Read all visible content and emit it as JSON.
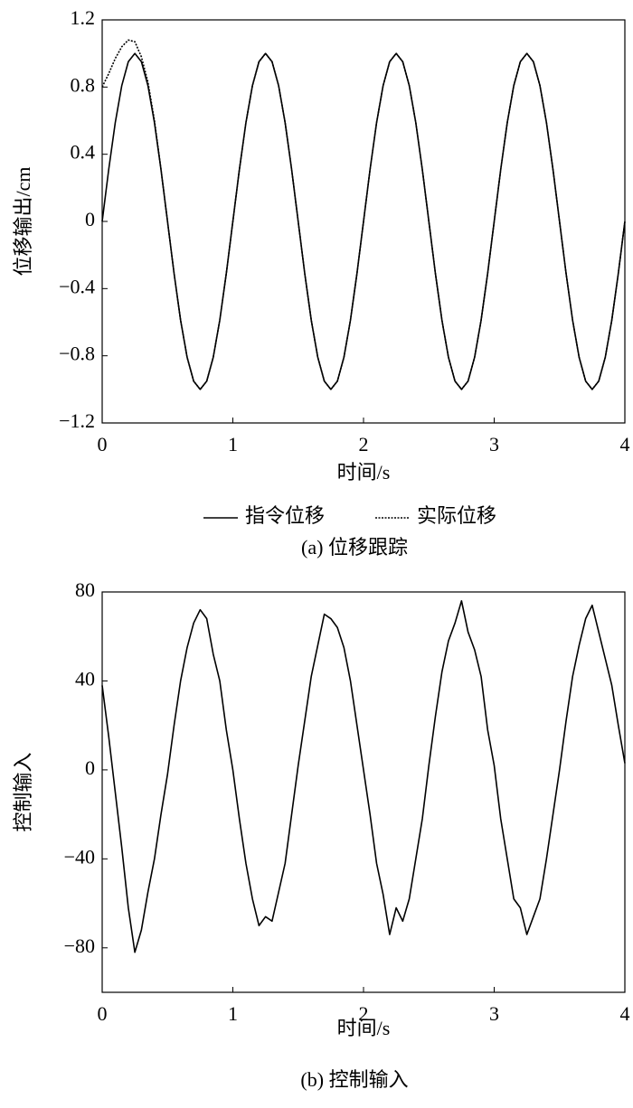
{
  "chart_data": [
    {
      "type": "line",
      "title": "(a) 位移跟踪",
      "xlabel": "时间/s",
      "ylabel": "位移输出/cm",
      "x": [
        0,
        0.05,
        0.1,
        0.15,
        0.2,
        0.25,
        0.3,
        0.35,
        0.4,
        0.45,
        0.5,
        0.55,
        0.6,
        0.65,
        0.7,
        0.75,
        0.8,
        0.85,
        0.9,
        0.95,
        1,
        1.05,
        1.1,
        1.15,
        1.2,
        1.25,
        1.3,
        1.35,
        1.4,
        1.45,
        1.5,
        1.55,
        1.6,
        1.65,
        1.7,
        1.75,
        1.8,
        1.85,
        1.9,
        1.95,
        2,
        2.05,
        2.1,
        2.15,
        2.2,
        2.25,
        2.3,
        2.35,
        2.4,
        2.45,
        2.5,
        2.55,
        2.6,
        2.65,
        2.7,
        2.75,
        2.8,
        2.85,
        2.9,
        2.95,
        3,
        3.05,
        3.1,
        3.15,
        3.2,
        3.25,
        3.3,
        3.35,
        3.4,
        3.45,
        3.5,
        3.55,
        3.6,
        3.65,
        3.7,
        3.75,
        3.8,
        3.85,
        3.9,
        3.95,
        4
      ],
      "series": [
        {
          "name": "指令位移",
          "color": "#000000",
          "linestyle": "solid",
          "values": [
            0,
            0.309,
            0.588,
            0.809,
            0.951,
            1,
            0.951,
            0.809,
            0.588,
            0.309,
            0,
            -0.309,
            -0.588,
            -0.809,
            -0.951,
            -1,
            -0.951,
            -0.809,
            -0.588,
            -0.309,
            0,
            0.309,
            0.588,
            0.809,
            0.951,
            1,
            0.951,
            0.809,
            0.588,
            0.309,
            0,
            -0.309,
            -0.588,
            -0.809,
            -0.951,
            -1,
            -0.951,
            -0.809,
            -0.588,
            -0.309,
            0,
            0.309,
            0.588,
            0.809,
            0.951,
            1,
            0.951,
            0.809,
            0.588,
            0.309,
            0,
            -0.309,
            -0.588,
            -0.809,
            -0.951,
            -1,
            -0.951,
            -0.809,
            -0.588,
            -0.309,
            0,
            0.309,
            0.588,
            0.809,
            0.951,
            1,
            0.951,
            0.809,
            0.588,
            0.309,
            0,
            -0.309,
            -0.588,
            -0.809,
            -0.951,
            -1,
            -0.951,
            -0.809,
            -0.588,
            -0.309,
            0
          ]
        },
        {
          "name": "实际位移",
          "color": "#000000",
          "linestyle": "dotted",
          "values": [
            0.8,
            0.88,
            0.97,
            1.04,
            1.08,
            1.07,
            0.98,
            0.83,
            0.6,
            0.309,
            0,
            -0.309,
            -0.588,
            -0.809,
            -0.951,
            -1,
            -0.951,
            -0.809,
            -0.588,
            -0.309,
            0,
            0.309,
            0.588,
            0.809,
            0.951,
            1,
            0.951,
            0.809,
            0.588,
            0.309,
            0,
            -0.309,
            -0.588,
            -0.809,
            -0.951,
            -1,
            -0.951,
            -0.809,
            -0.588,
            -0.309,
            0,
            0.309,
            0.588,
            0.809,
            0.951,
            1,
            0.951,
            0.809,
            0.588,
            0.309,
            0,
            -0.309,
            -0.588,
            -0.809,
            -0.951,
            -1,
            -0.951,
            -0.809,
            -0.588,
            -0.309,
            0,
            0.309,
            0.588,
            0.809,
            0.951,
            1,
            0.951,
            0.809,
            0.588,
            0.309,
            0,
            -0.309,
            -0.588,
            -0.809,
            -0.951,
            -1,
            -0.951,
            -0.809,
            -0.588,
            -0.309,
            0
          ]
        }
      ],
      "xlim": [
        0,
        4
      ],
      "xticks": [
        0,
        1,
        2,
        3,
        4
      ],
      "ylim": [
        -1.2,
        1.2
      ],
      "yticks": [
        1.2,
        0.8,
        0.4,
        0,
        {
          "value": -0.4,
          "label": "−0.4"
        },
        {
          "value": -0.8,
          "label": "−0.8"
        },
        {
          "value": -1.2,
          "label": "−1.2"
        }
      ],
      "legend": "bottom"
    },
    {
      "type": "line",
      "title": "(b) 控制输入",
      "xlabel": "时间/s",
      "ylabel": "控制输入",
      "x": [
        0,
        0.05,
        0.1,
        0.15,
        0.2,
        0.25,
        0.3,
        0.35,
        0.4,
        0.45,
        0.5,
        0.55,
        0.6,
        0.65,
        0.7,
        0.75,
        0.8,
        0.85,
        0.9,
        0.95,
        1,
        1.05,
        1.1,
        1.15,
        1.2,
        1.25,
        1.3,
        1.35,
        1.4,
        1.45,
        1.5,
        1.55,
        1.6,
        1.65,
        1.7,
        1.75,
        1.8,
        1.85,
        1.9,
        1.95,
        2,
        2.05,
        2.1,
        2.15,
        2.2,
        2.25,
        2.3,
        2.35,
        2.4,
        2.45,
        2.5,
        2.55,
        2.6,
        2.65,
        2.7,
        2.75,
        2.8,
        2.85,
        2.9,
        2.95,
        3,
        3.05,
        3.1,
        3.15,
        3.2,
        3.25,
        3.3,
        3.35,
        3.4,
        3.45,
        3.5,
        3.55,
        3.6,
        3.65,
        3.7,
        3.75,
        3.8,
        3.85,
        3.9,
        3.95,
        4
      ],
      "color": "#000000",
      "values": [
        38,
        15,
        -10,
        -35,
        -62,
        -82,
        -72,
        -55,
        -40,
        -20,
        -2,
        20,
        40,
        55,
        66,
        72,
        68,
        52,
        40,
        18,
        0,
        -22,
        -42,
        -58,
        -70,
        -66,
        -68,
        -55,
        -42,
        -20,
        2,
        22,
        42,
        56,
        70,
        68,
        64,
        55,
        40,
        20,
        0,
        -20,
        -42,
        -56,
        -74,
        -62,
        -68,
        -58,
        -40,
        -22,
        2,
        24,
        44,
        58,
        66,
        76,
        62,
        54,
        42,
        18,
        2,
        -22,
        -40,
        -58,
        -62,
        -74,
        -66,
        -58,
        -40,
        -20,
        0,
        22,
        42,
        56,
        68,
        74,
        62,
        50,
        38,
        20,
        3
      ],
      "xlim": [
        0,
        4
      ],
      "xticks": [
        0,
        1,
        2,
        3,
        4
      ],
      "ylim": [
        -100,
        80
      ],
      "yticks": [
        80,
        40,
        0,
        {
          "value": -40,
          "label": "−40"
        },
        {
          "value": -80,
          "label": "−80"
        }
      ]
    }
  ]
}
